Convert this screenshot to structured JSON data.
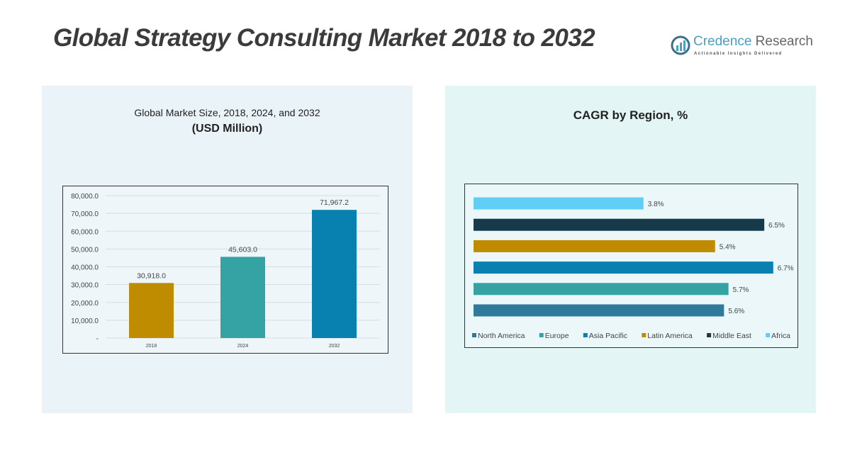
{
  "title": "Global Strategy Consulting Market 2018 to 2032",
  "logo": {
    "name_part1": "Credence",
    "name_part2": " Research",
    "tagline": "Actionable Insights Delivered",
    "icon": "bar-chart-circle-icon"
  },
  "chart_data": [
    {
      "type": "bar",
      "title": "Global Market Size, 2018, 2024, and 2032",
      "subtitle": "(USD Million)",
      "categories": [
        "2018",
        "2024",
        "2032"
      ],
      "values": [
        30918.0,
        45603.0,
        71967.2
      ],
      "data_labels": [
        "30,918.0",
        "45,603.0",
        "71,967.2"
      ],
      "colors": [
        "#bf8c00",
        "#35a3a3",
        "#0880b0"
      ],
      "ylim": [
        0,
        80000
      ],
      "yticks": [
        "-",
        "10,000.0",
        "20,000.0",
        "30,000.0",
        "40,000.0",
        "50,000.0",
        "60,000.0",
        "70,000.0",
        "80,000.0"
      ],
      "grid": true
    },
    {
      "type": "bar",
      "orientation": "horizontal",
      "title": "CAGR by Region, %",
      "categories": [
        "Africa",
        "Middle East",
        "Latin America",
        "Asia Pacific",
        "Europe",
        "North America"
      ],
      "values": [
        3.8,
        6.5,
        5.4,
        6.7,
        5.7,
        5.6
      ],
      "data_labels": [
        "3.8%",
        "6.5%",
        "5.4%",
        "6.7%",
        "5.7%",
        "5.6%"
      ],
      "colors": [
        "#5fcff5",
        "#173a4a",
        "#bf8c00",
        "#0880b0",
        "#35a3a3",
        "#2f7a9a"
      ],
      "legend": {
        "position": "bottom",
        "items": [
          {
            "label": "North America",
            "color": "#2f7a9a"
          },
          {
            "label": "Europe",
            "color": "#35a3a3"
          },
          {
            "label": "Asia Pacific",
            "color": "#0880b0"
          },
          {
            "label": "Latin America",
            "color": "#bf8c00"
          },
          {
            "label": "Middle East",
            "color": "#173a4a"
          },
          {
            "label": "Africa",
            "color": "#5fcff5"
          }
        ]
      }
    }
  ]
}
